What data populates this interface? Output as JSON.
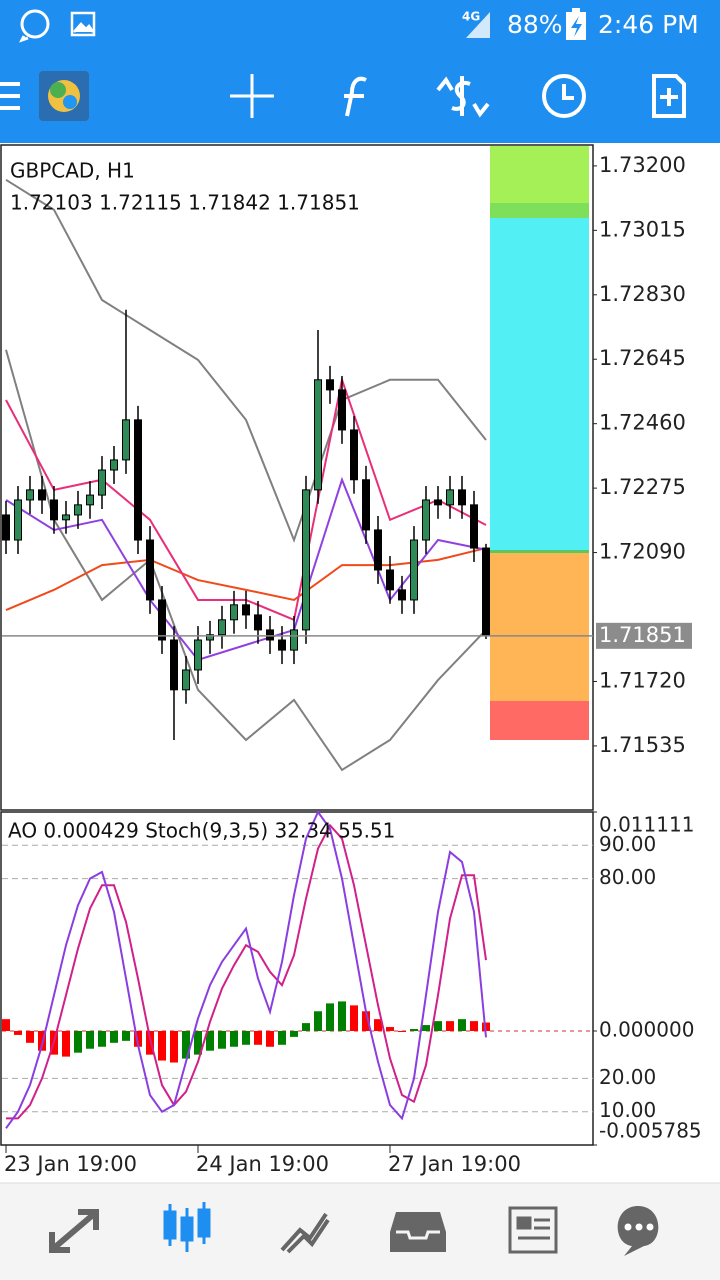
{
  "status_bar": {
    "network": "4G",
    "battery": "88%",
    "time": "2:46 PM"
  },
  "chart": {
    "symbol": "GBPCAD, H1",
    "ohlc": "1.72103 1.72115 1.71842 1.71851",
    "ylim": [
      1.71351,
      1.7326
    ],
    "yticks": [
      {
        "value": 1.732,
        "label": "1.73200"
      },
      {
        "value": 1.73015,
        "label": "1.73015"
      },
      {
        "value": 1.7283,
        "label": "1.72830"
      },
      {
        "value": 1.72645,
        "label": "1.72645"
      },
      {
        "value": 1.7246,
        "label": "1.72460"
      },
      {
        "value": 1.72275,
        "label": "1.72275"
      },
      {
        "value": 1.7209,
        "label": "1.72090"
      },
      {
        "value": 1.7172,
        "label": "1.71720"
      },
      {
        "value": 1.71535,
        "label": "1.71535"
      }
    ],
    "current_price": {
      "value": 1.71851,
      "label": "1.71851"
    },
    "xticks": [
      {
        "value": 0,
        "label": "23 Jan 19:00"
      },
      {
        "value": 16,
        "label": "24 Jan 19:00"
      },
      {
        "value": 32,
        "label": "27 Jan 19:00"
      }
    ],
    "up_color": "#2e8b57",
    "down_color": "#000000",
    "candles": {
      "open": [
        1.72198,
        1.72126,
        1.72241,
        1.7227,
        1.72241,
        1.72184,
        1.72198,
        1.72227,
        1.72255,
        1.72327,
        1.72356,
        1.72471,
        1.72126,
        1.71954,
        1.71839,
        1.71696,
        1.71753,
        1.71839,
        1.71854,
        1.71897,
        1.7194,
        1.71911,
        1.71868,
        1.71839,
        1.7181,
        1.71868,
        1.7227,
        1.72586,
        1.72557,
        1.72442,
        1.72299,
        1.72155,
        1.7204,
        1.71983,
        1.71954,
        1.72126,
        1.72241,
        1.72227,
        1.7227,
        1.72227,
        1.72103
      ],
      "high": [
        1.72238,
        1.72281,
        1.7231,
        1.7231,
        1.72281,
        1.72238,
        1.72267,
        1.72295,
        1.72367,
        1.72396,
        1.72787,
        1.72511,
        1.72166,
        1.71994,
        1.71879,
        1.71793,
        1.71879,
        1.71894,
        1.71937,
        1.7198,
        1.7198,
        1.71951,
        1.71908,
        1.71879,
        1.71908,
        1.7231,
        1.72729,
        1.72626,
        1.72597,
        1.72482,
        1.72339,
        1.72195,
        1.7208,
        1.72023,
        1.72166,
        1.72281,
        1.72281,
        1.7231,
        1.7231,
        1.72267,
        1.72115
      ],
      "low": [
        1.72086,
        1.72086,
        1.72201,
        1.72201,
        1.72144,
        1.72144,
        1.72158,
        1.72187,
        1.72215,
        1.72287,
        1.72316,
        1.72086,
        1.71914,
        1.71799,
        1.71552,
        1.71656,
        1.71713,
        1.71799,
        1.71814,
        1.71857,
        1.71871,
        1.71828,
        1.71799,
        1.7177,
        1.7177,
        1.71828,
        1.7223,
        1.72517,
        1.72402,
        1.72259,
        1.72115,
        1.72,
        1.71943,
        1.71914,
        1.71914,
        1.72086,
        1.72187,
        1.72187,
        1.72187,
        1.72063,
        1.71842
      ],
      "close": [
        1.72126,
        1.72241,
        1.7227,
        1.72241,
        1.72184,
        1.72198,
        1.72227,
        1.72255,
        1.72327,
        1.72356,
        1.72471,
        1.72126,
        1.71954,
        1.71839,
        1.71696,
        1.71753,
        1.71839,
        1.71854,
        1.71897,
        1.7194,
        1.71911,
        1.71868,
        1.71839,
        1.7181,
        1.71868,
        1.7227,
        1.72586,
        1.72557,
        1.72442,
        1.72299,
        1.72155,
        1.7204,
        1.71983,
        1.71954,
        1.72126,
        1.72241,
        1.72227,
        1.7227,
        1.72227,
        1.72103,
        1.71851
      ]
    },
    "overlays": [
      {
        "color": "#808080",
        "x": [
          0,
          4,
          8,
          12,
          16,
          20,
          24,
          28,
          32,
          36,
          40
        ],
        "values": [
          1.7316,
          1.73074,
          1.72815,
          1.72729,
          1.72643,
          1.72471,
          1.72126,
          1.72528,
          1.72586,
          1.72586,
          1.72413
        ]
      },
      {
        "color": "#808080",
        "x": [
          0,
          4,
          8,
          12,
          16,
          20,
          24,
          28,
          32,
          36,
          40
        ],
        "values": [
          1.72672,
          1.72184,
          1.71954,
          1.72069,
          1.71696,
          1.71552,
          1.71667,
          1.71466,
          1.71552,
          1.71724,
          1.71868
        ]
      },
      {
        "color": "#f04a1a",
        "x": [
          0,
          4,
          8,
          12,
          16,
          20,
          24,
          28,
          32,
          36,
          40
        ],
        "values": [
          1.71925,
          1.71983,
          1.72054,
          1.72069,
          1.72011,
          1.71983,
          1.71954,
          1.72054,
          1.72054,
          1.72069,
          1.72103
        ]
      },
      {
        "color": "#e8307a",
        "x": [
          0,
          4,
          8,
          12,
          16,
          20,
          24,
          28,
          32,
          36,
          40
        ],
        "values": [
          1.72528,
          1.7227,
          1.72299,
          1.72184,
          1.71954,
          1.71954,
          1.71897,
          1.72586,
          1.72184,
          1.72241,
          1.72169
        ]
      },
      {
        "color": "#9040e0",
        "x": [
          0,
          4,
          8,
          12,
          16,
          20,
          24,
          28,
          32,
          36,
          40
        ],
        "values": [
          1.72241,
          1.72155,
          1.72184,
          1.71954,
          1.71782,
          1.71825,
          1.71868,
          1.72299,
          1.71954,
          1.72126,
          1.72098
        ]
      }
    ]
  },
  "indicator": {
    "legend": "AO 0.000429 Stoch(9,3,5) 32.34 55.51",
    "ao": {
      "up_color": "#008000",
      "down_color": "#ff0000",
      "zero_color": "#d03030",
      "ylim": [
        -0.005785,
        0.011111
      ],
      "yticks": [
        {
          "value": 0.011111,
          "label": "0.011111"
        },
        {
          "value": 0,
          "label": "0.000000"
        },
        {
          "value": -0.005785,
          "label": "-0.005785"
        }
      ],
      "values": [
        0.0006,
        -0.0002,
        -0.0006,
        -0.001,
        -0.0012,
        -0.0013,
        -0.0011,
        -0.0009,
        -0.0008,
        -0.0006,
        -0.0005,
        -0.0008,
        -0.0012,
        -0.0015,
        -0.0016,
        -0.0014,
        -0.0012,
        -0.001,
        -0.0009,
        -0.0008,
        -0.0007,
        -0.0007,
        -0.0008,
        -0.0007,
        -0.0003,
        0.0004,
        0.001,
        0.0014,
        0.0015,
        0.0013,
        0.001,
        0.0006,
        0.0002,
        0,
        0.0001,
        0.0003,
        0.0005,
        0.0005,
        0.0006,
        0.0005,
        0.000429
      ]
    },
    "stoch": {
      "ylim": [
        0,
        100
      ],
      "yticks": [
        {
          "value": 90,
          "label": "90.00"
        },
        {
          "value": 80,
          "label": "80.00"
        },
        {
          "value": 20,
          "label": "20.00"
        },
        {
          "value": 10,
          "label": "10.00"
        }
      ],
      "main": {
        "color": "#8a3ee0",
        "values": [
          5,
          10,
          18,
          30,
          45,
          60,
          72,
          80,
          82,
          70,
          50,
          30,
          15,
          10,
          12,
          25,
          38,
          48,
          55,
          60,
          65,
          50,
          40,
          55,
          75,
          92,
          100,
          95,
          80,
          60,
          40,
          25,
          12,
          8,
          20,
          45,
          70,
          88,
          85,
          70,
          32.34
        ]
      },
      "signal": {
        "color": "#d0208a",
        "values": [
          8,
          8,
          12,
          20,
          31,
          45,
          59,
          71,
          78,
          78,
          67,
          50,
          32,
          18,
          12,
          16,
          25,
          37,
          47,
          54,
          60,
          58,
          52,
          48,
          57,
          74,
          89,
          96,
          92,
          78,
          60,
          42,
          26,
          15,
          13,
          24,
          45,
          68,
          81,
          81,
          55.51
        ]
      }
    }
  }
}
